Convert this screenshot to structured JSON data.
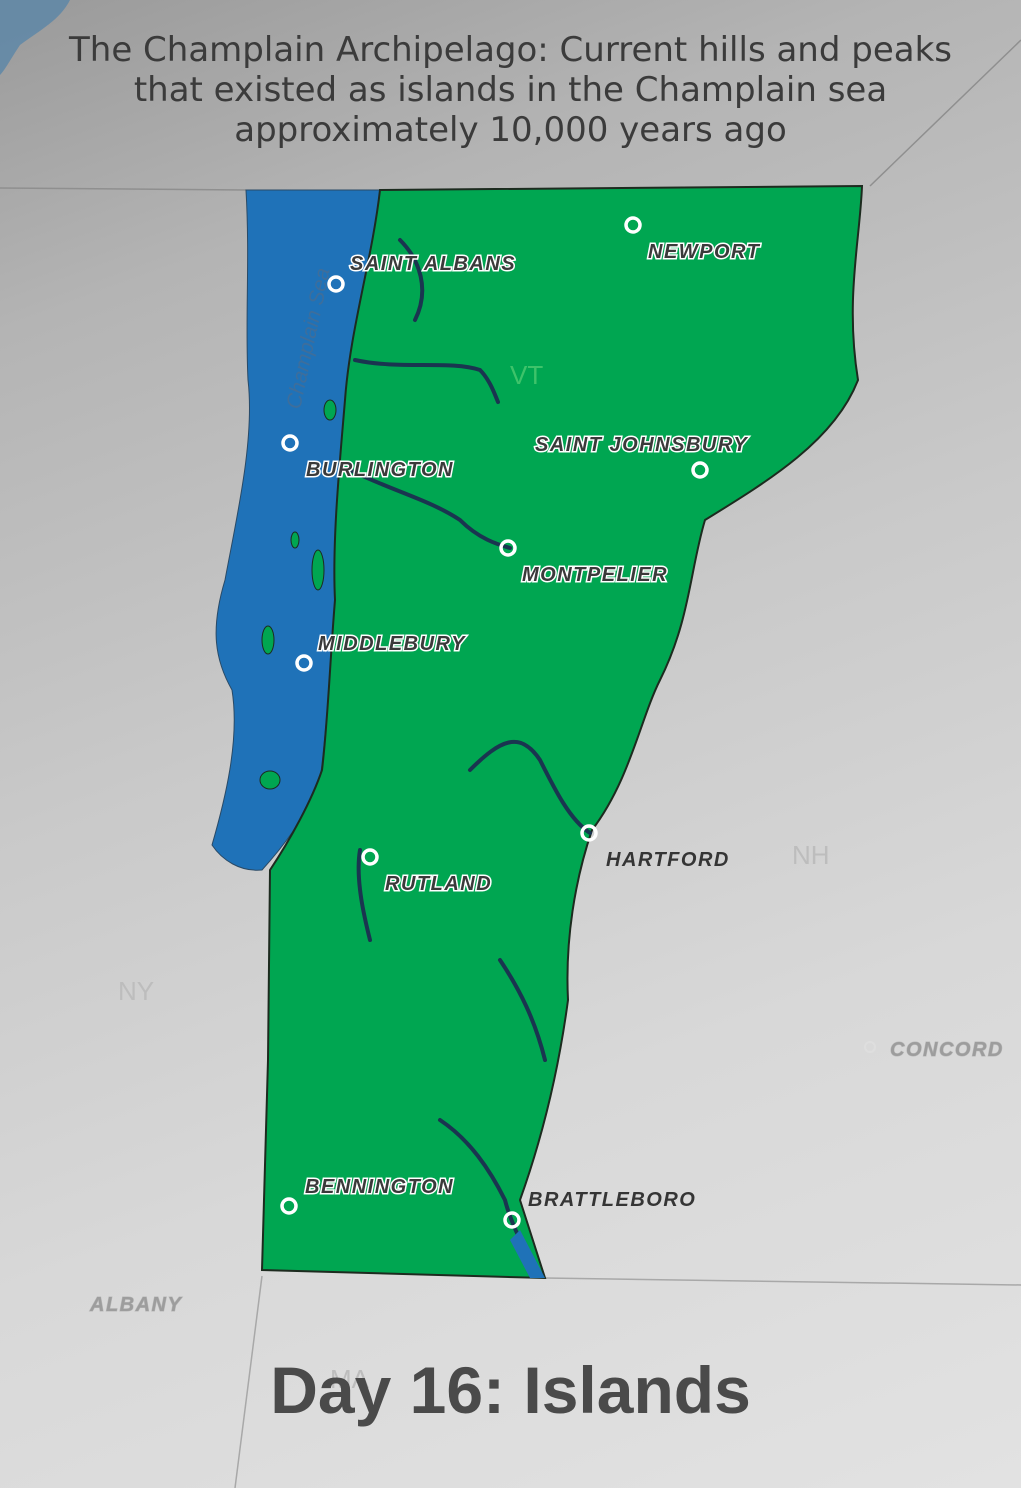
{
  "title_lines": [
    "The Champlain Archipelago: Current hills and peaks",
    "that existed as islands in the Champlain sea",
    "approximately 10,000 years ago"
  ],
  "footer_title": "Day 16: Islands",
  "sea_label": "Champlain Sea",
  "state_labels": {
    "vt": "VT",
    "nh": "NH",
    "ny": "NY",
    "ma": "MA"
  },
  "cities": {
    "saint_albans": "SAINT ALBANS",
    "newport": "NEWPORT",
    "burlington": "BURLINGTON",
    "saint_johnsbury": "SAINT JOHNSBURY",
    "montpelier": "MONTPELIER",
    "middlebury": "MIDDLEBURY",
    "rutland": "RUTLAND",
    "hartford": "HARTFORD",
    "concord": "CONCORD",
    "bennington": "BENNINGTON",
    "brattleboro": "BRATTLEBORO",
    "albany": "ALBANY"
  },
  "colors": {
    "land": "#00a651",
    "sea": "#1f72b8",
    "background": "#c9c9c9",
    "title_text": "#3b3b3b"
  }
}
